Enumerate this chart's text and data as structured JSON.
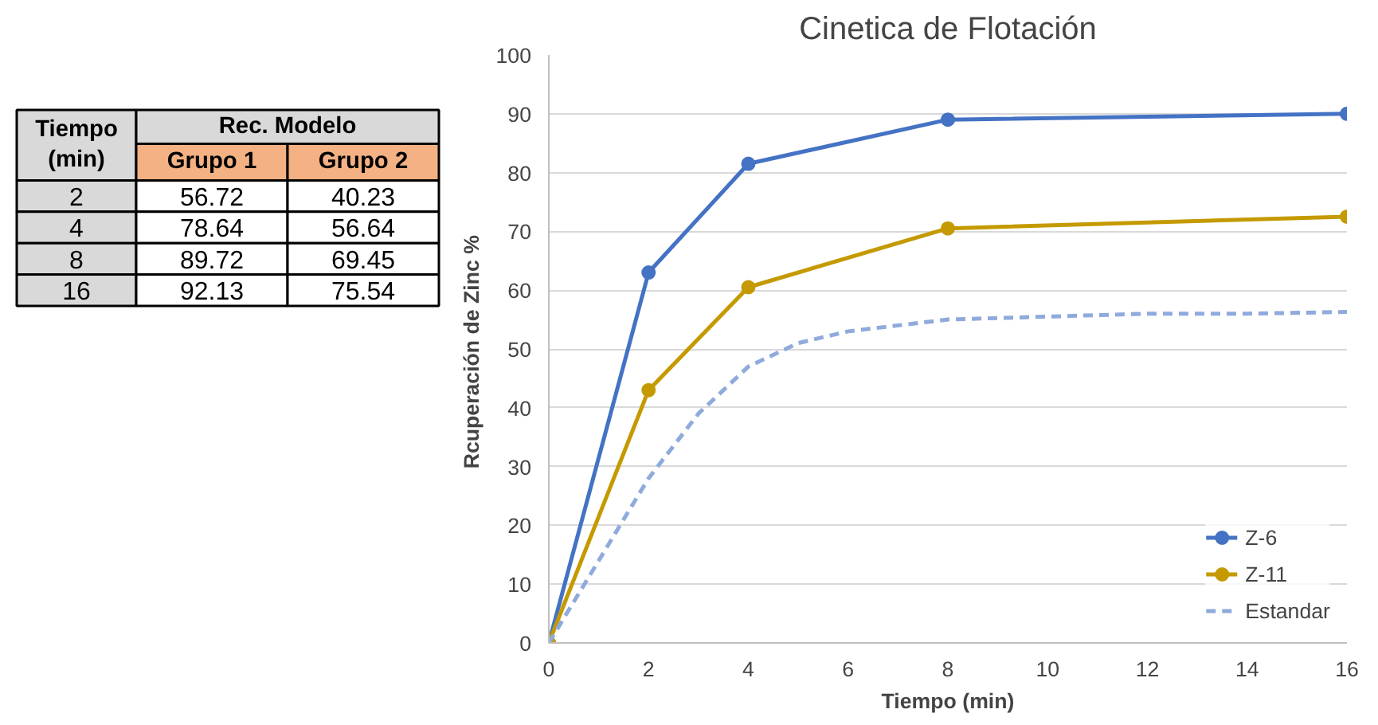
{
  "chart_data": {
    "type": "line",
    "title": "Cinetica de Flotación",
    "xlabel": "Tiempo (min)",
    "ylabel": "Rcuperación  de Zinc %",
    "x": [
      0,
      2,
      4,
      8,
      16
    ],
    "series": [
      {
        "name": "Z-6",
        "color": "#4472c4",
        "values": [
          0,
          63,
          81.5,
          89,
          90
        ],
        "marker": "circle",
        "line_style": "solid"
      },
      {
        "name": "Z-11",
        "color": "#c49a00",
        "values": [
          0,
          43,
          60.5,
          70.5,
          72.5
        ],
        "marker": "circle",
        "line_style": "solid"
      },
      {
        "name": "Estandar",
        "color": "#8faadc",
        "x": [
          0,
          1,
          2,
          3,
          4,
          5,
          6,
          8,
          10,
          12,
          14,
          16
        ],
        "values": [
          0,
          14,
          28,
          39,
          47,
          51,
          53,
          55,
          55.5,
          56,
          56,
          56.3
        ],
        "marker": "none",
        "line_style": "dashed"
      }
    ],
    "xlim": [
      0,
      16
    ],
    "xticks": [
      0,
      2,
      4,
      6,
      8,
      10,
      12,
      14,
      16
    ],
    "ylim": [
      0,
      100
    ],
    "yticks": [
      0,
      10,
      20,
      30,
      40,
      50,
      60,
      70,
      80,
      90,
      100
    ],
    "grid": "y",
    "legend": "bottom right",
    "annotations": [
      "Tiempo (min)",
      "Rec. Modelo",
      "Grupo 1",
      "Grupo 2",
      "2",
      "56.72",
      "40.23",
      "4",
      "78.64",
      "56.64",
      "8",
      "89.72",
      "69.45",
      "16",
      "92.13",
      "75.54"
    ]
  }
}
